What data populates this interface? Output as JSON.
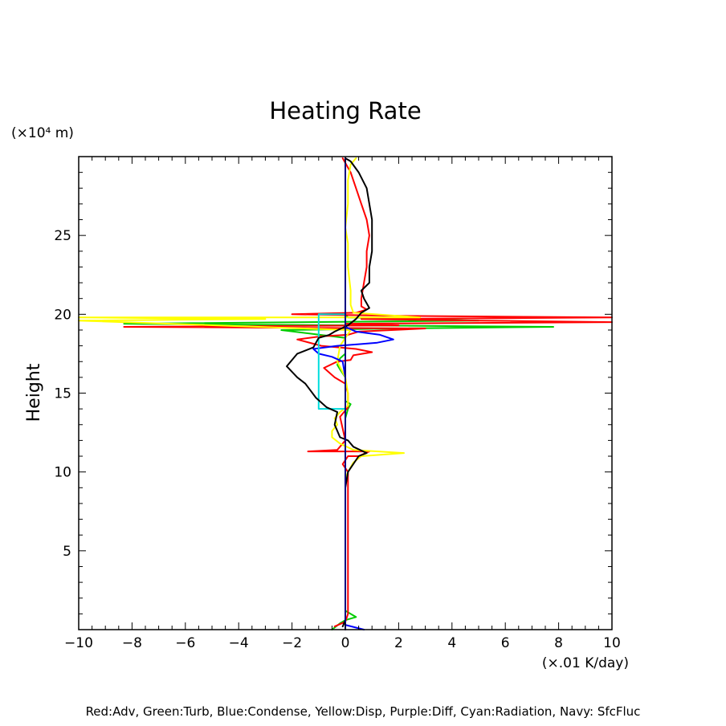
{
  "chart_data": {
    "type": "line",
    "title": "Heating Rate",
    "ylabel": "Height",
    "y_unit_label": "(×10⁴ m)",
    "x_unit_label": "(×.01 K/day)",
    "xlim": [
      -10,
      10
    ],
    "ylim": [
      0,
      30
    ],
    "x_ticks": [
      "−10",
      "−8",
      "−6",
      "−4",
      "−2",
      "0",
      "2",
      "4",
      "6",
      "8",
      "10"
    ],
    "y_ticks": [
      "5",
      "10",
      "15",
      "20",
      "25"
    ],
    "legend_text": "Red:Adv, Green:Turb, Blue:Condense, Yellow:Disp, Purple:Diff, Cyan:Radiation, Navy: SfcFluc",
    "colors": {
      "total": "#000000",
      "adv": "#ff0000",
      "turb": "#00cc00",
      "condense": "#0000ff",
      "disp": "#ffff00",
      "diff": "#cc00cc",
      "radiation": "#00dddd",
      "sfcfluc": "#000080"
    },
    "series": [
      {
        "key": "total",
        "points": [
          [
            -0.1,
            0.2
          ],
          [
            0,
            0.6
          ],
          [
            0,
            9
          ],
          [
            0.1,
            10
          ],
          [
            0.5,
            11
          ],
          [
            0.8,
            11.2
          ],
          [
            0.3,
            11.6
          ],
          [
            0.1,
            12
          ],
          [
            -0.2,
            12.2
          ],
          [
            -0.4,
            13
          ],
          [
            -0.3,
            13.8
          ],
          [
            -0.7,
            14.1
          ],
          [
            -1.1,
            14.7
          ],
          [
            -1.5,
            15.6
          ],
          [
            -1.8,
            16
          ],
          [
            -2.2,
            16.7
          ],
          [
            -1.8,
            17.5
          ],
          [
            -1.2,
            17.9
          ],
          [
            -1.0,
            18.5
          ],
          [
            -0.6,
            18.7
          ],
          [
            -0.4,
            18.9
          ],
          [
            0.1,
            19.3
          ],
          [
            0.4,
            19.7
          ],
          [
            0.6,
            20.1
          ],
          [
            0.9,
            20.4
          ],
          [
            0.7,
            21
          ],
          [
            0.6,
            21.5
          ],
          [
            0.9,
            22
          ],
          [
            0.9,
            23
          ],
          [
            1.0,
            24
          ],
          [
            1.0,
            26
          ],
          [
            0.9,
            27
          ],
          [
            0.8,
            28
          ],
          [
            0.5,
            29
          ],
          [
            0.2,
            29.7
          ],
          [
            0,
            29.9
          ]
        ]
      },
      {
        "key": "adv",
        "points": [
          [
            -0.4,
            0.2
          ],
          [
            0,
            0.5
          ],
          [
            0.1,
            1
          ],
          [
            0.1,
            10
          ],
          [
            -0.1,
            10.5
          ],
          [
            0.1,
            11
          ],
          [
            0.5,
            11
          ],
          [
            0.9,
            11.3
          ],
          [
            -0.5,
            11.3
          ],
          [
            -1.4,
            11.3
          ],
          [
            -0.3,
            11.4
          ],
          [
            0,
            12
          ],
          [
            -0.2,
            13.5
          ],
          [
            0.1,
            14.1
          ],
          [
            0.1,
            15
          ],
          [
            0,
            15.6
          ],
          [
            -0.4,
            16
          ],
          [
            -0.8,
            16.6
          ],
          [
            -0.3,
            17
          ],
          [
            0.2,
            17.1
          ],
          [
            0.3,
            17.4
          ],
          [
            1.0,
            17.6
          ],
          [
            0.4,
            17.8
          ],
          [
            -0.9,
            18
          ],
          [
            -1.8,
            18.4
          ],
          [
            -0.9,
            18.6
          ],
          [
            0.1,
            18.7
          ],
          [
            0.5,
            18.9
          ],
          [
            3,
            19.1
          ],
          [
            -8.3,
            19.2
          ],
          [
            2,
            19.3
          ],
          [
            0,
            19.4
          ],
          [
            10,
            19.5
          ],
          [
            5,
            19.6
          ],
          [
            0.6,
            19.7
          ],
          [
            10,
            19.8
          ],
          [
            2,
            19.9
          ],
          [
            -2,
            20
          ],
          [
            0.4,
            20.1
          ],
          [
            0.8,
            20.3
          ],
          [
            0.6,
            20.5
          ],
          [
            0.6,
            21
          ],
          [
            0.7,
            22
          ],
          [
            0.8,
            23
          ],
          [
            0.8,
            24
          ],
          [
            0.9,
            25
          ],
          [
            0.8,
            26
          ],
          [
            0.6,
            27
          ],
          [
            0.4,
            28
          ],
          [
            0.2,
            29
          ],
          [
            -0.1,
            29.9
          ]
        ]
      },
      {
        "key": "turb",
        "points": [
          [
            -0.5,
            0
          ],
          [
            -0.2,
            0.4
          ],
          [
            0,
            0.6
          ],
          [
            0.4,
            0.8
          ],
          [
            0.2,
            1
          ],
          [
            0,
            1.2
          ],
          [
            0,
            10
          ],
          [
            0,
            11
          ],
          [
            0,
            13.4
          ],
          [
            0.1,
            14
          ],
          [
            0.2,
            14.3
          ],
          [
            0,
            14.5
          ],
          [
            0,
            16
          ],
          [
            -0.2,
            16.5
          ],
          [
            -0.3,
            16.8
          ],
          [
            -0.2,
            17.2
          ],
          [
            0,
            17.5
          ],
          [
            0,
            18.5
          ],
          [
            -2.4,
            19
          ],
          [
            2,
            19.1
          ],
          [
            7.8,
            19.2
          ],
          [
            -8.3,
            19.4
          ],
          [
            5,
            19.6
          ],
          [
            0.1,
            19.8
          ],
          [
            0,
            20
          ],
          [
            0,
            29.9
          ]
        ]
      },
      {
        "key": "condense",
        "points": [
          [
            0.7,
            0
          ],
          [
            0,
            0.3
          ],
          [
            0,
            13
          ],
          [
            0,
            16
          ],
          [
            -0.1,
            17
          ],
          [
            -0.5,
            17.3
          ],
          [
            -1,
            17.5
          ],
          [
            -1.2,
            17.8
          ],
          [
            -0.3,
            18.0
          ],
          [
            0.5,
            18.1
          ],
          [
            1.2,
            18.2
          ],
          [
            1.8,
            18.4
          ],
          [
            1.3,
            18.7
          ],
          [
            0.4,
            18.9
          ],
          [
            0,
            19.2
          ],
          [
            0,
            29.9
          ]
        ]
      },
      {
        "key": "disp",
        "points": [
          [
            0,
            9.6
          ],
          [
            0.1,
            10
          ],
          [
            0.3,
            10.6
          ],
          [
            0.6,
            11
          ],
          [
            2.2,
            11.2
          ],
          [
            0.3,
            11.4
          ],
          [
            -0.2,
            11.8
          ],
          [
            -0.5,
            12.2
          ],
          [
            -0.5,
            12.6
          ],
          [
            -0.3,
            13
          ],
          [
            -0.4,
            13.4
          ],
          [
            -0.2,
            13.8
          ],
          [
            0.1,
            14.2
          ],
          [
            0.1,
            15
          ],
          [
            0,
            16
          ],
          [
            -0.3,
            17
          ],
          [
            -0.2,
            18
          ],
          [
            0.2,
            19
          ],
          [
            -10,
            19.6
          ],
          [
            -3,
            19.7
          ],
          [
            -10,
            19.8
          ],
          [
            2.8,
            19.8
          ],
          [
            0.3,
            20.1
          ],
          [
            0.2,
            20.6
          ],
          [
            0.2,
            21.5
          ],
          [
            0.1,
            23
          ],
          [
            0.1,
            24.5
          ],
          [
            0,
            25.5
          ],
          [
            0.1,
            27
          ],
          [
            0.1,
            28.5
          ],
          [
            0.2,
            29.5
          ],
          [
            0.4,
            29.9
          ]
        ]
      },
      {
        "key": "diff",
        "points": [
          [
            0,
            0
          ],
          [
            0,
            29.9
          ]
        ]
      },
      {
        "key": "radiation",
        "points": [
          [
            0,
            14
          ],
          [
            -1.0,
            14
          ],
          [
            -1.0,
            20
          ],
          [
            0,
            20
          ]
        ]
      },
      {
        "key": "sfcfluc",
        "points": [
          [
            0,
            0
          ],
          [
            0,
            29.9
          ]
        ]
      }
    ]
  }
}
